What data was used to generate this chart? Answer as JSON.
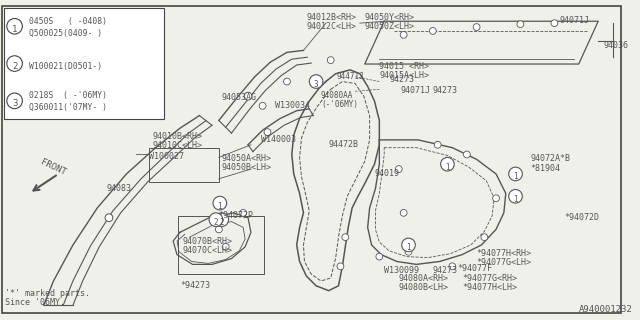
{
  "bg_color": "#f0f0eb",
  "line_color": "#555555",
  "border_color": "#444444",
  "title": "A940001232",
  "legend_entries": [
    {
      "num": "1",
      "line1": "0450S   ( -0408)",
      "line2": "Q500025(0409- )"
    },
    {
      "num": "2",
      "line1": "W100021(D0501-)"
    },
    {
      "num": "3",
      "line1": "0218S  ( -'06MY)",
      "line2": "Q360011('07MY- )"
    }
  ],
  "footnote1": "'*' marked parts.",
  "footnote2": "Since '06MY.",
  "diagram_id": "A940001232"
}
